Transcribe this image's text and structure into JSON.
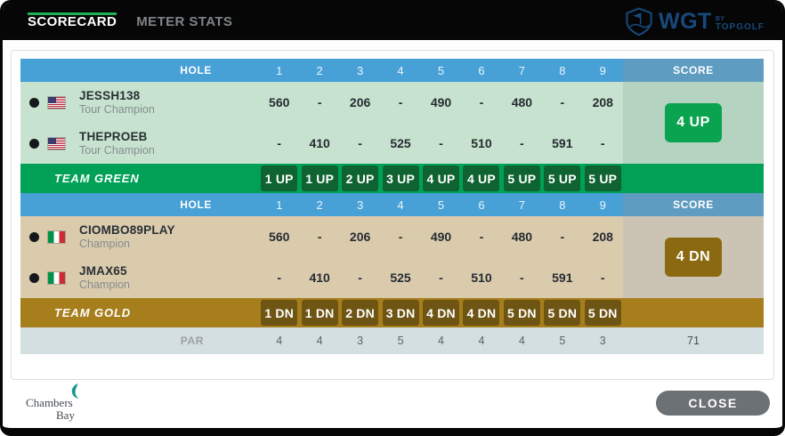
{
  "topbar": {
    "tabs": [
      {
        "label": "SCORECARD",
        "active": true
      },
      {
        "label": "METER STATS",
        "active": false
      }
    ],
    "logo": {
      "brand": "WGT",
      "by": "BY",
      "sub": "TOPGOLF"
    }
  },
  "scorecard": {
    "hole_label": "HOLE",
    "score_label": "SCORE",
    "holes": [
      "1",
      "2",
      "3",
      "4",
      "5",
      "6",
      "7",
      "8",
      "9"
    ],
    "teams": [
      {
        "name_label": "TEAM GREEN",
        "score_badge": "4 UP",
        "progress": [
          "1 UP",
          "1 UP",
          "2 UP",
          "3 UP",
          "4 UP",
          "4 UP",
          "5 UP",
          "5 UP",
          "5 UP"
        ],
        "players": [
          {
            "name": "JESSH138",
            "tier": "Tour Champion",
            "country": "us",
            "values": [
              "560",
              "-",
              "206",
              "-",
              "490",
              "-",
              "480",
              "-",
              "208"
            ]
          },
          {
            "name": "THEPROEB",
            "tier": "Tour Champion",
            "country": "us",
            "values": [
              "-",
              "410",
              "-",
              "525",
              "-",
              "510",
              "-",
              "591",
              "-"
            ]
          }
        ]
      },
      {
        "name_label": "TEAM GOLD",
        "score_badge": "4 DN",
        "progress": [
          "1 DN",
          "1 DN",
          "2 DN",
          "3 DN",
          "4 DN",
          "4 DN",
          "5 DN",
          "5 DN",
          "5 DN"
        ],
        "players": [
          {
            "name": "CIOMBO89PLAY",
            "tier": "Champion",
            "country": "it",
            "values": [
              "560",
              "-",
              "206",
              "-",
              "490",
              "-",
              "480",
              "-",
              "208"
            ]
          },
          {
            "name": "JMAX65",
            "tier": "Champion",
            "country": "it",
            "values": [
              "-",
              "410",
              "-",
              "525",
              "-",
              "510",
              "-",
              "591",
              "-"
            ]
          }
        ]
      }
    ],
    "par": {
      "label": "PAR",
      "values": [
        "4",
        "4",
        "3",
        "5",
        "4",
        "4",
        "4",
        "5",
        "3"
      ],
      "total": "71"
    }
  },
  "footer": {
    "course_line1": "Chambers",
    "course_line2": "Bay",
    "close_label": "CLOSE"
  },
  "colors": {
    "tab_underline_green": "#1FB254",
    "header_blue": "#47A0D6",
    "header_score_blue": "#5E9CC1",
    "team_green_row": "#00A156",
    "team_green_badge": "#0E6330",
    "score_up_badge": "#0AA34F",
    "green_section_bg": "#C7E3CF",
    "team_gold_row": "#A67E1C",
    "team_gold_badge": "#6F5513",
    "score_dn_badge": "#8A6911",
    "gold_section_bg": "#DACBAD",
    "par_row_bg": "#D4DFE2",
    "logo_blue": "#17497B",
    "close_button_gray": "#6C7176"
  }
}
